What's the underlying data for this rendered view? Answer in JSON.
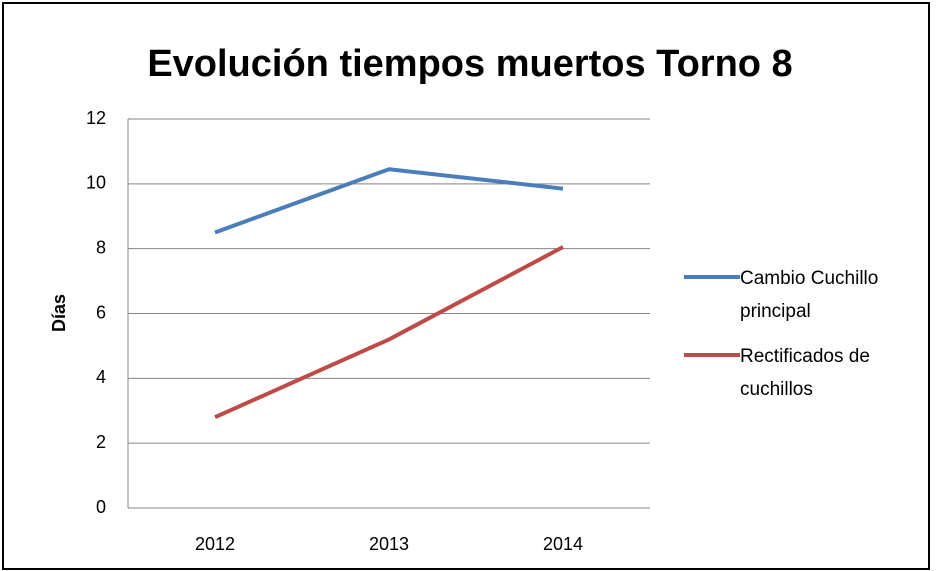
{
  "chart_data": {
    "type": "line",
    "title": "Evolución tiempos muertos Torno 8",
    "y_label": "Días",
    "categories": [
      "2012",
      "2013",
      "2014"
    ],
    "series": [
      {
        "name": "Cambio Cuchillo principal",
        "color": "#4a7ebb",
        "values": [
          8.5,
          10.45,
          9.85
        ]
      },
      {
        "name": "Rectificados de cuchillos",
        "color": "#be4b48",
        "values": [
          2.8,
          5.2,
          8.05
        ]
      }
    ],
    "ylim": [
      0,
      12
    ],
    "yticks": [
      0,
      2,
      4,
      6,
      8,
      10,
      12
    ],
    "grid": true,
    "legend": "right"
  }
}
